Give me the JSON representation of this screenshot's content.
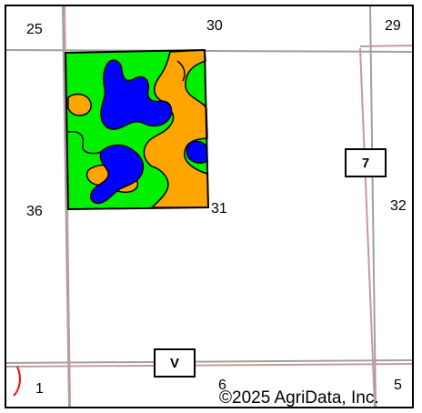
{
  "map": {
    "section_labels": {
      "s25": "25",
      "s30": "30",
      "s29": "29",
      "s36": "36",
      "s31": "31",
      "s32": "32",
      "s1": "1",
      "s6": "6",
      "s5": "5"
    },
    "route_shields": {
      "route_7": "7",
      "route_v": "V"
    },
    "copyright": "©2025 AgriData, Inc.",
    "colors": {
      "soil_green": "#00f000",
      "soil_blue": "#0000ff",
      "soil_orange": "#ffa500",
      "road_line": "#c8a0a0",
      "section_line": "#a0a0a0",
      "boundary": "#000000",
      "water_line": "#ff0000"
    }
  }
}
